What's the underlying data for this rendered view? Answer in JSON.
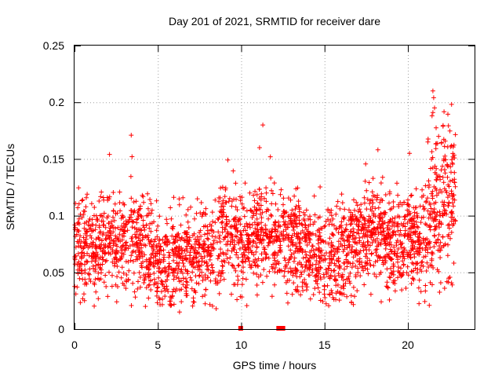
{
  "chart_data": {
    "type": "scatter",
    "title": "Day 201 of 2021, SRMTID for receiver dare",
    "xlabel": "GPS time / hours",
    "ylabel": "SRMTID / TECUs",
    "xlim": [
      0,
      24
    ],
    "ylim": [
      0,
      0.25
    ],
    "xticks": [
      0,
      5,
      10,
      15,
      20
    ],
    "xtick_labels": [
      "0",
      "5",
      "10",
      "15",
      "20"
    ],
    "yticks": [
      0,
      0.05,
      0.1,
      0.15,
      0.2,
      0.25
    ],
    "ytick_labels": [
      "0",
      "0.05",
      "0.1",
      "0.15",
      "0.2",
      "0.25"
    ],
    "grid": true,
    "marker": "+",
    "color": "#ff0000",
    "x_range_hours": [
      0,
      22.9
    ],
    "baseline": [
      [
        0,
        0.07
      ],
      [
        1,
        0.068
      ],
      [
        2,
        0.08
      ],
      [
        3,
        0.078
      ],
      [
        4,
        0.072
      ],
      [
        5,
        0.06
      ],
      [
        6,
        0.058
      ],
      [
        7,
        0.064
      ],
      [
        8,
        0.07
      ],
      [
        9,
        0.083
      ],
      [
        10,
        0.076
      ],
      [
        11,
        0.082
      ],
      [
        12,
        0.085
      ],
      [
        13,
        0.078
      ],
      [
        14,
        0.07
      ],
      [
        15,
        0.06
      ],
      [
        16,
        0.068
      ],
      [
        17,
        0.078
      ],
      [
        18,
        0.086
      ],
      [
        19,
        0.078
      ],
      [
        20,
        0.075
      ],
      [
        21,
        0.082
      ],
      [
        22,
        0.11
      ],
      [
        22.9,
        0.115
      ]
    ],
    "spread": 0.022,
    "n_points": 2750,
    "outliers": [
      {
        "x": 3.4,
        "y": 0.171
      },
      {
        "x": 3.45,
        "y": 0.152
      },
      {
        "x": 2.1,
        "y": 0.154
      },
      {
        "x": 11.3,
        "y": 0.18
      },
      {
        "x": 11.1,
        "y": 0.16
      },
      {
        "x": 9.2,
        "y": 0.149
      },
      {
        "x": 21.5,
        "y": 0.21
      },
      {
        "x": 21.55,
        "y": 0.204
      },
      {
        "x": 21.6,
        "y": 0.195
      },
      {
        "x": 21.45,
        "y": 0.188
      },
      {
        "x": 21.5,
        "y": 0.191
      },
      {
        "x": 21.2,
        "y": 0.165
      },
      {
        "x": 18.2,
        "y": 0.158
      },
      {
        "x": 20.1,
        "y": 0.155
      },
      {
        "x": 6.3,
        "y": 0.015
      },
      {
        "x": 8.5,
        "y": 0.018
      },
      {
        "x": 18.4,
        "y": 0.024
      },
      {
        "x": 12.8,
        "y": 0.023
      },
      {
        "x": 12.0,
        "y": 0.039
      },
      {
        "x": 22.2,
        "y": 0.036
      }
    ],
    "zero_markers": [
      {
        "x": 9.97,
        "y": 0
      },
      {
        "x": 12.25,
        "y": 0
      },
      {
        "x": 12.5,
        "y": 0
      }
    ]
  }
}
